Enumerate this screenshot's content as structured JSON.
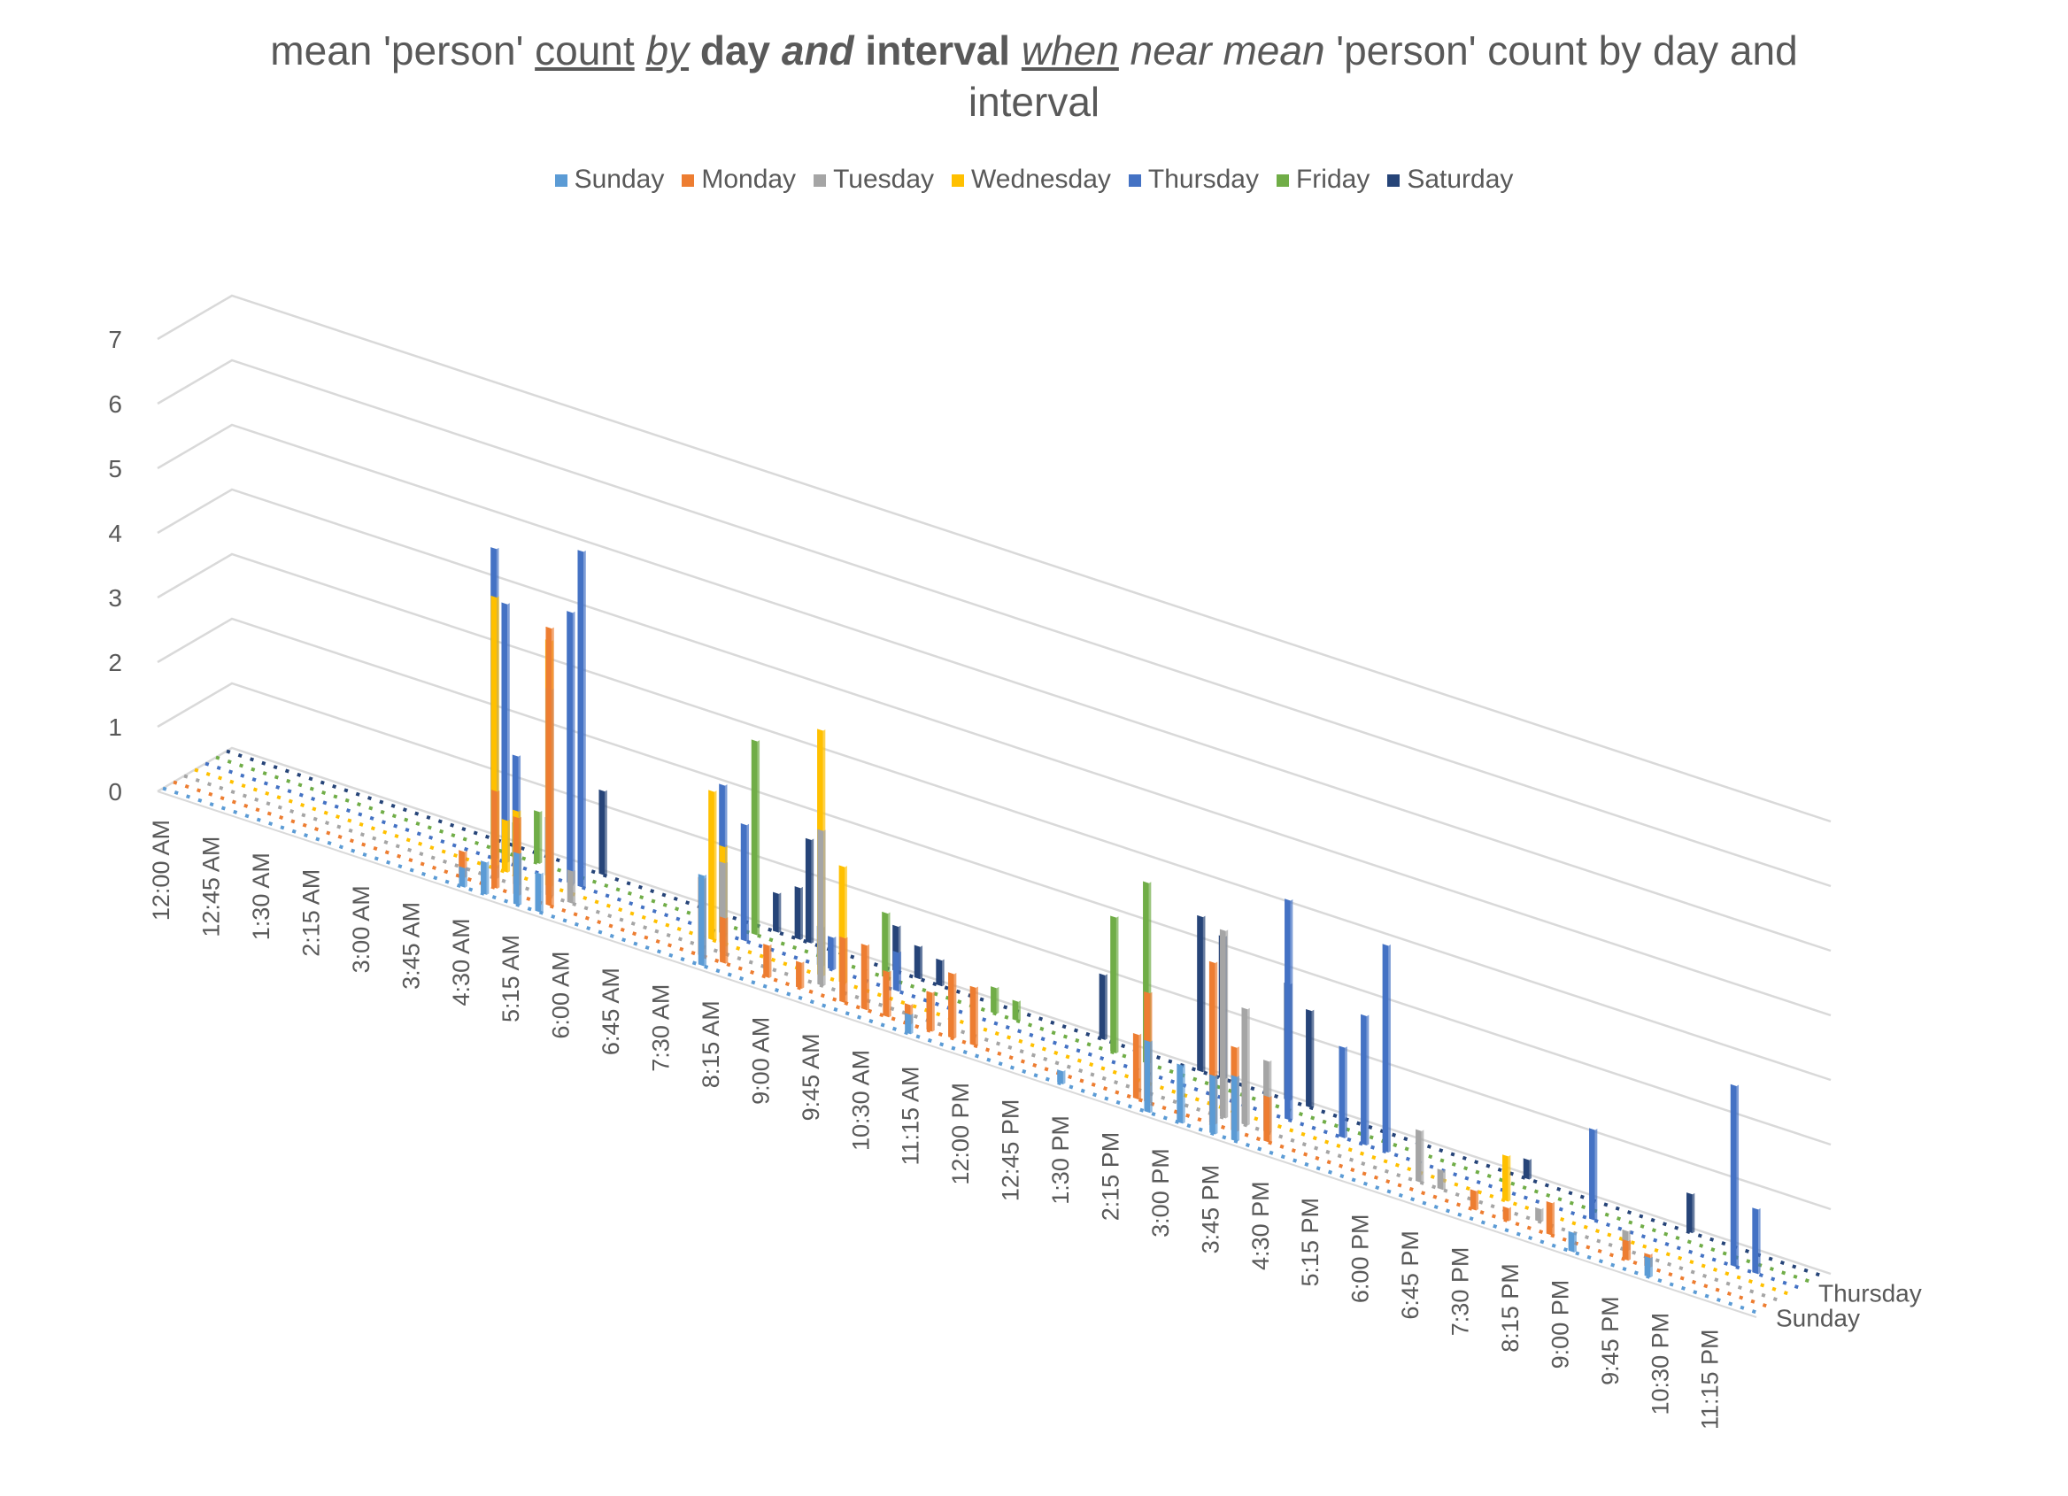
{
  "chart_data": {
    "type": "bar",
    "subtype": "3d-column",
    "title": {
      "line1": [
        {
          "text": "mean 'person' ",
          "style": ""
        },
        {
          "text": "count",
          "style": "u"
        },
        {
          "text": " ",
          "style": ""
        },
        {
          "text": "by",
          "style": "u i"
        },
        {
          "text": " ",
          "style": ""
        },
        {
          "text": "day ",
          "style": "b"
        },
        {
          "text": "and",
          "style": "b i"
        },
        {
          "text": " interval",
          "style": "b"
        },
        {
          "text": " ",
          "style": ""
        },
        {
          "text": "when",
          "style": "u i"
        },
        {
          "text": " ",
          "style": ""
        },
        {
          "text": "near mean",
          "style": "i"
        },
        {
          "text": " 'person' count by day and",
          "style": ""
        }
      ],
      "line2": "interval"
    },
    "ylim": [
      0,
      7
    ],
    "y_ticks": [
      "0",
      "1",
      "2",
      "3",
      "4",
      "5",
      "6",
      "7"
    ],
    "x_tick_labels": [
      "12:00 AM",
      "12:45 AM",
      "1:30 AM",
      "2:15 AM",
      "3:00 AM",
      "3:45 AM",
      "4:30 AM",
      "5:15 AM",
      "6:00 AM",
      "6:45 AM",
      "7:30 AM",
      "8:15 AM",
      "9:00 AM",
      "9:45 AM",
      "10:30 AM",
      "11:15 AM",
      "12:00 PM",
      "12:45 PM",
      "1:30 PM",
      "2:15 PM",
      "3:00 PM",
      "3:45 PM",
      "4:30 PM",
      "5:15 PM",
      "6:00 PM",
      "6:45 PM",
      "7:30 PM",
      "8:15 PM",
      "9:00 PM",
      "9:45 PM",
      "10:30 PM",
      "11:15 PM"
    ],
    "depth_tick_labels": [
      "Sunday",
      "Thursday"
    ],
    "legend_position": "top",
    "gridlines": true,
    "interval_minutes": 15,
    "series": [
      {
        "name": "Sunday",
        "color": "#5b9bd5",
        "values": [
          0,
          0,
          0,
          0,
          0,
          0,
          0,
          0,
          0,
          0,
          0,
          0,
          0,
          0,
          0,
          0,
          0,
          0,
          0,
          0,
          0,
          0,
          0,
          0,
          0,
          0,
          0,
          0.3,
          0,
          0.5,
          0,
          0,
          0.8,
          0,
          0.6,
          0,
          0,
          0,
          0,
          0,
          0,
          0,
          0,
          0,
          0,
          0,
          0,
          0,
          0,
          1.4,
          0,
          0,
          0,
          0,
          0,
          0,
          0,
          0,
          0,
          0,
          0,
          0,
          0,
          0,
          0,
          0,
          0,
          0,
          0.3,
          0,
          0,
          0,
          0,
          0,
          0,
          0,
          0,
          0,
          0,
          0,
          0,
          0,
          0.2,
          0,
          0,
          0,
          0,
          0,
          0,
          0,
          1.1,
          0,
          0,
          0.9,
          0,
          0,
          0.9,
          0,
          1.0,
          0,
          0,
          0,
          0,
          0,
          0,
          0,
          0,
          0,
          0,
          0,
          0,
          0,
          0,
          0,
          0,
          0,
          0,
          0,
          0,
          0,
          0,
          0,
          0,
          0,
          0,
          0,
          0,
          0,
          0,
          0.3,
          0,
          0,
          0,
          0,
          0,
          0,
          0.3,
          0,
          0,
          0,
          0,
          0,
          0,
          0,
          0,
          0,
          0
        ]
      },
      {
        "name": "Monday",
        "color": "#ed7d31",
        "values": [
          0,
          0,
          0,
          0,
          0,
          0,
          0,
          0,
          0,
          0,
          0,
          0,
          0,
          0,
          0,
          0,
          0,
          0,
          0,
          0,
          0,
          0,
          0,
          0,
          0,
          0,
          0.4,
          0,
          0,
          1.5,
          0,
          1.2,
          0,
          0,
          4.3,
          0,
          0,
          0,
          0,
          0,
          0,
          0,
          0,
          0,
          0,
          0,
          0,
          0,
          1.2,
          0,
          0.7,
          0,
          0,
          0,
          0.5,
          0,
          0,
          0.4,
          0,
          0,
          0,
          1.0,
          0,
          1.0,
          0,
          0.7,
          0,
          0.3,
          0,
          0.6,
          0,
          1.0,
          0,
          0.9,
          0,
          0,
          0,
          0,
          0,
          0,
          0,
          0,
          0,
          0,
          0,
          0,
          0,
          0,
          1.0,
          1.7,
          0,
          0,
          0,
          0,
          0,
          2.5,
          0,
          1.3,
          0,
          0,
          0.7,
          0,
          0,
          0,
          0,
          0,
          0,
          0,
          0,
          0,
          0,
          0,
          0,
          0,
          0,
          0,
          0,
          0,
          0,
          0.3,
          0,
          0,
          0.2,
          0,
          0,
          0,
          0.5,
          0,
          0,
          0,
          0,
          0,
          0,
          0.3,
          0,
          0.2,
          0,
          0,
          0,
          0,
          0,
          0,
          0,
          0
        ]
      },
      {
        "name": "Tuesday",
        "color": "#a5a5a5",
        "values": [
          0,
          0,
          0,
          0,
          0,
          0,
          0,
          0,
          0,
          0,
          0,
          0,
          0,
          0,
          0,
          0,
          0,
          0,
          0,
          0,
          0,
          0,
          0,
          0,
          0,
          0,
          0,
          0,
          0.2,
          0,
          0.4,
          0,
          0,
          3.2,
          0,
          0.5,
          0,
          0,
          0,
          0,
          0,
          0,
          0,
          0,
          0,
          0,
          0,
          0,
          0,
          1.4,
          0,
          0,
          0,
          0,
          0,
          0,
          0,
          0,
          2.4,
          0,
          0,
          0,
          0,
          0,
          0,
          0,
          0,
          0,
          0,
          0,
          0,
          0,
          0,
          0,
          0,
          0,
          0,
          0,
          0,
          0,
          0,
          0,
          0,
          0,
          0,
          0,
          0,
          0,
          0,
          0,
          0,
          0,
          0,
          0,
          0,
          2.9,
          0,
          1.8,
          0,
          1.1,
          0,
          0,
          0,
          0,
          0,
          0,
          0,
          0,
          0,
          0,
          0,
          0,
          0,
          0.8,
          0,
          0.3,
          0,
          0,
          0,
          0,
          0,
          0,
          0,
          0,
          0.2,
          0,
          0,
          0,
          0,
          0,
          0,
          0,
          0.3,
          0,
          0,
          0,
          0,
          0,
          0,
          0,
          0,
          0,
          0,
          0,
          0,
          0
        ]
      },
      {
        "name": "Wednesday",
        "color": "#ffc000",
        "values": [
          0,
          0,
          0,
          0,
          0,
          0,
          0,
          0,
          0,
          0,
          0,
          0,
          0,
          0,
          0,
          0,
          0,
          0,
          0,
          0,
          0,
          0,
          0,
          0,
          0,
          0,
          0,
          4.2,
          0.8,
          1.0,
          0,
          0,
          3.8,
          0,
          0,
          0,
          0,
          0,
          0,
          0,
          0,
          0,
          0,
          0,
          0,
          0,
          0,
          2.3,
          1.5,
          0,
          0,
          0,
          0,
          0,
          0,
          0,
          0,
          3.8,
          0,
          1.8,
          0,
          0,
          0,
          0,
          0,
          0,
          0,
          0,
          0,
          0,
          0,
          0,
          0,
          0,
          0,
          0,
          0,
          0,
          0,
          0,
          0,
          0,
          0,
          0,
          0,
          0,
          0,
          0,
          0,
          0,
          0,
          0,
          0,
          0,
          0,
          0,
          0,
          0,
          0,
          0,
          0,
          0,
          0,
          0,
          0,
          0,
          0,
          0,
          0,
          0,
          0,
          0,
          0,
          0,
          0,
          0,
          0,
          0,
          0,
          0,
          0.7,
          0,
          0,
          0,
          0,
          0,
          0,
          0,
          0,
          0,
          0,
          0,
          0,
          0,
          0,
          0,
          0,
          0,
          0,
          0,
          0,
          0,
          0,
          0,
          0,
          0,
          0,
          0,
          0
        ]
      },
      {
        "name": "Thursday",
        "color": "#4472c4",
        "values": [
          0,
          0,
          0,
          0,
          0,
          0,
          0,
          0,
          0,
          0,
          0,
          0,
          0,
          0,
          0,
          0,
          0,
          0,
          0,
          0,
          0,
          0,
          0,
          0,
          0,
          0,
          4.8,
          4.0,
          1.7,
          0,
          0,
          0.9,
          0,
          4.2,
          5.2,
          0,
          0,
          0,
          0,
          0,
          0,
          0,
          0,
          0,
          0,
          0,
          0,
          2.3,
          0,
          1.8,
          0,
          0,
          0,
          0,
          0,
          0,
          0.6,
          0.5,
          0,
          0,
          0,
          0,
          0,
          0.6,
          0,
          0,
          0,
          0,
          0,
          0,
          0,
          0,
          0,
          0,
          0,
          0,
          0,
          0,
          0,
          0,
          0,
          0,
          0,
          0,
          0,
          0,
          0,
          0,
          0,
          0,
          0,
          0,
          0,
          0,
          0,
          0,
          0,
          0,
          0,
          3.4,
          0,
          0,
          0,
          0,
          1.4,
          0,
          2.0,
          0,
          3.2,
          0,
          0,
          0,
          0,
          0,
          0,
          0,
          0,
          0,
          0,
          0,
          0,
          0,
          0,
          0,
          0,
          0,
          0,
          1.4,
          0,
          0,
          0,
          0,
          0,
          0,
          0,
          0,
          0,
          0,
          0,
          0,
          2.8,
          0,
          1.0,
          0,
          0,
          0,
          0,
          0,
          0,
          0,
          0
        ]
      },
      {
        "name": "Friday",
        "color": "#70ad47",
        "values": [
          0,
          0,
          0,
          0,
          0,
          0,
          0,
          0,
          0,
          0,
          0,
          0,
          0,
          0,
          0,
          0,
          0,
          0,
          0,
          0,
          0,
          0,
          0,
          0,
          0,
          0,
          0,
          0.5,
          0,
          0.8,
          0,
          0,
          0,
          0,
          0,
          0,
          0,
          0,
          0,
          0,
          0,
          0,
          0,
          0,
          0,
          0,
          0,
          0,
          0,
          3.0,
          0,
          0,
          0,
          0,
          0,
          0,
          0,
          0,
          0,
          0,
          0,
          1.0,
          0,
          0,
          0,
          0,
          0,
          0,
          0,
          0,
          0,
          0.4,
          0,
          0.3,
          0,
          0,
          0,
          0,
          0,
          0,
          0,
          0,
          2.1,
          0,
          0,
          2.8,
          0,
          0,
          0,
          0,
          0,
          0,
          0,
          0,
          0,
          0,
          0,
          0,
          0,
          0,
          0,
          0,
          0,
          0,
          0,
          0,
          0,
          0,
          0,
          0,
          0,
          0,
          0,
          0,
          0,
          0,
          0,
          0,
          0,
          0,
          0,
          0,
          0,
          0,
          0,
          0,
          0,
          0,
          0,
          0,
          0,
          0,
          0,
          0,
          0,
          0,
          0,
          0,
          0,
          0,
          0,
          0,
          0
        ]
      },
      {
        "name": "Saturday",
        "color": "#264478",
        "values": [
          0,
          0,
          0,
          0,
          0,
          0,
          0,
          0,
          0,
          0,
          0,
          0,
          0,
          0,
          0,
          0,
          0,
          0,
          0,
          0,
          0,
          0,
          0,
          0,
          0,
          0,
          0,
          0,
          0,
          0,
          0,
          0,
          0,
          0,
          1.3,
          0,
          0,
          0,
          0,
          0,
          0,
          0,
          0,
          0,
          0,
          0,
          0,
          0,
          0,
          0,
          0.6,
          0,
          0.8,
          1.6,
          0,
          0,
          0,
          0,
          0,
          0,
          0,
          0.7,
          0,
          0.5,
          0,
          0.4,
          0,
          0,
          0,
          0,
          0,
          0,
          0,
          0,
          0,
          0,
          0,
          0,
          0,
          0,
          1.0,
          0,
          0,
          0,
          0,
          0,
          0,
          0,
          0,
          2.4,
          0,
          2.2,
          0,
          0,
          0,
          0,
          0,
          1.8,
          0,
          1.5,
          0,
          0,
          0,
          0,
          0,
          0,
          0,
          0,
          0,
          0,
          0,
          0,
          0,
          0,
          0,
          0,
          0,
          0,
          0,
          0.3,
          0,
          0,
          0,
          0,
          0,
          0,
          0,
          0,
          0,
          0,
          0,
          0,
          0,
          0,
          0.6,
          0,
          0,
          0,
          0,
          0,
          0,
          0,
          0,
          0
        ]
      }
    ]
  }
}
